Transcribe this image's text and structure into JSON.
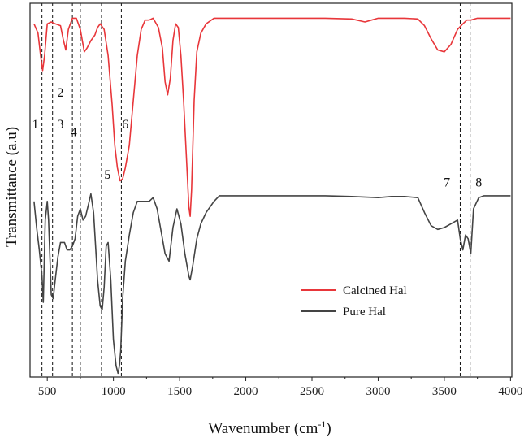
{
  "chart_data": {
    "type": "line",
    "title": "",
    "xlabel": "Wavenumber (cm",
    "xlabel_sup": "-1",
    "xlabel_close": ")",
    "ylabel": "Transmittance (a.u)",
    "xlim": [
      370,
      4010
    ],
    "ylim": [
      0,
      1
    ],
    "x_ticks": [
      500,
      1000,
      1500,
      2000,
      2500,
      3000,
      3500,
      4000
    ],
    "x_tick_labels": [
      "500",
      "1000",
      "1500",
      "2000",
      "2500",
      "3000",
      "3500",
      "4000"
    ],
    "y_ticks_visible": false,
    "grid": false,
    "legend_position": "bottom-right",
    "series": [
      {
        "name": "Calcined Hal",
        "color": "#e8363a",
        "x": [
          400,
          430,
          450,
          465,
          480,
          500,
          530,
          560,
          600,
          620,
          640,
          660,
          690,
          720,
          750,
          780,
          800,
          830,
          860,
          880,
          900,
          930,
          960,
          990,
          1010,
          1030,
          1050,
          1070,
          1090,
          1120,
          1150,
          1180,
          1210,
          1240,
          1270,
          1300,
          1340,
          1370,
          1390,
          1410,
          1430,
          1450,
          1470,
          1490,
          1510,
          1530,
          1550,
          1570,
          1580,
          1590,
          1610,
          1630,
          1660,
          1700,
          1760,
          1800,
          1900,
          2000,
          2200,
          2400,
          2600,
          2800,
          2900,
          2950,
          3000,
          3100,
          3200,
          3300,
          3350,
          3400,
          3450,
          3500,
          3550,
          3600,
          3640,
          3670,
          3700,
          3750,
          3800,
          3900,
          4000
        ],
        "y": [
          0.945,
          0.92,
          0.86,
          0.82,
          0.86,
          0.945,
          0.95,
          0.945,
          0.94,
          0.905,
          0.875,
          0.93,
          0.96,
          0.96,
          0.93,
          0.87,
          0.88,
          0.9,
          0.915,
          0.935,
          0.945,
          0.93,
          0.86,
          0.73,
          0.62,
          0.56,
          0.525,
          0.53,
          0.56,
          0.62,
          0.74,
          0.86,
          0.93,
          0.955,
          0.955,
          0.96,
          0.935,
          0.88,
          0.79,
          0.755,
          0.8,
          0.9,
          0.945,
          0.935,
          0.86,
          0.74,
          0.6,
          0.455,
          0.43,
          0.5,
          0.74,
          0.87,
          0.92,
          0.945,
          0.96,
          0.96,
          0.96,
          0.96,
          0.96,
          0.96,
          0.96,
          0.958,
          0.95,
          0.955,
          0.96,
          0.96,
          0.96,
          0.958,
          0.94,
          0.905,
          0.875,
          0.87,
          0.89,
          0.93,
          0.945,
          0.955,
          0.955,
          0.96,
          0.96,
          0.96,
          0.96
        ]
      },
      {
        "name": "Pure Hal",
        "color": "#444444",
        "x": [
          400,
          420,
          440,
          460,
          470,
          485,
          500,
          510,
          530,
          545,
          560,
          580,
          600,
          630,
          650,
          670,
          690,
          710,
          730,
          750,
          770,
          790,
          810,
          830,
          850,
          870,
          880,
          900,
          915,
          930,
          945,
          960,
          980,
          1000,
          1020,
          1035,
          1045,
          1055,
          1070,
          1090,
          1120,
          1150,
          1180,
          1220,
          1270,
          1300,
          1330,
          1360,
          1390,
          1420,
          1450,
          1480,
          1510,
          1540,
          1570,
          1580,
          1600,
          1630,
          1660,
          1700,
          1760,
          1800,
          1900,
          2000,
          2200,
          2400,
          2600,
          2800,
          3000,
          3100,
          3200,
          3300,
          3350,
          3400,
          3450,
          3500,
          3550,
          3600,
          3620,
          3640,
          3660,
          3680,
          3700,
          3720,
          3760,
          3800,
          3900,
          4000
        ],
        "y": [
          0.47,
          0.4,
          0.34,
          0.27,
          0.2,
          0.42,
          0.47,
          0.42,
          0.22,
          0.21,
          0.26,
          0.32,
          0.36,
          0.36,
          0.34,
          0.34,
          0.35,
          0.37,
          0.43,
          0.45,
          0.42,
          0.43,
          0.46,
          0.49,
          0.44,
          0.32,
          0.26,
          0.19,
          0.18,
          0.24,
          0.35,
          0.36,
          0.26,
          0.1,
          0.03,
          0.01,
          0.03,
          0.07,
          0.21,
          0.31,
          0.38,
          0.44,
          0.47,
          0.47,
          0.47,
          0.48,
          0.45,
          0.39,
          0.33,
          0.31,
          0.4,
          0.45,
          0.41,
          0.33,
          0.27,
          0.26,
          0.3,
          0.37,
          0.41,
          0.44,
          0.47,
          0.485,
          0.485,
          0.485,
          0.485,
          0.485,
          0.485,
          0.483,
          0.48,
          0.483,
          0.483,
          0.48,
          0.44,
          0.405,
          0.395,
          0.4,
          0.41,
          0.42,
          0.37,
          0.34,
          0.38,
          0.37,
          0.33,
          0.45,
          0.48,
          0.485,
          0.485,
          0.485
        ]
      }
    ],
    "vlines": [
      {
        "x": 460,
        "style": "dashed",
        "label": "1"
      },
      {
        "x": 540,
        "style": "dashed",
        "label": "2"
      },
      {
        "x": 690,
        "style": "dashed",
        "label": "3"
      },
      {
        "x": 750,
        "style": "dashed",
        "label": "4"
      },
      {
        "x": 910,
        "style": "dashed",
        "label": "5"
      },
      {
        "x": 1060,
        "style": "dashed",
        "label": "6"
      },
      {
        "x": 3620,
        "style": "dashed",
        "label": "7"
      },
      {
        "x": 3695,
        "style": "dashed",
        "label": "8"
      }
    ],
    "annotations": [
      {
        "text": "1",
        "x": 410,
        "y": 0.665
      },
      {
        "text": "2",
        "x": 600,
        "y": 0.75
      },
      {
        "text": "3",
        "x": 600,
        "y": 0.665
      },
      {
        "text": "4",
        "x": 700,
        "y": 0.645
      },
      {
        "text": "5",
        "x": 955,
        "y": 0.53
      },
      {
        "text": "6",
        "x": 1090,
        "y": 0.665
      },
      {
        "text": "7",
        "x": 3520,
        "y": 0.51
      },
      {
        "text": "8",
        "x": 3760,
        "y": 0.51
      }
    ]
  }
}
